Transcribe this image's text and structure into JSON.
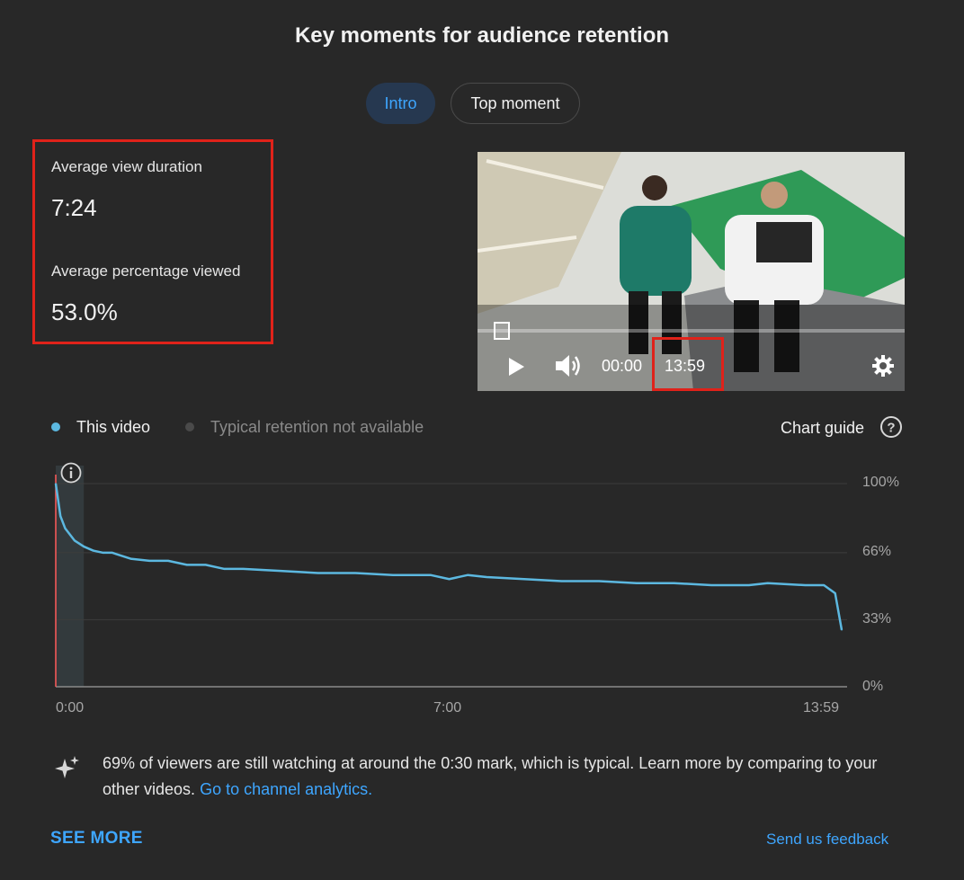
{
  "header": {
    "title": "Key moments for audience retention"
  },
  "tabs": [
    {
      "label": "Intro",
      "active": true
    },
    {
      "label": "Top moment",
      "active": false
    }
  ],
  "stats": {
    "avg_view_duration_label": "Average view duration",
    "avg_view_duration_value": "7:24",
    "avg_percentage_label": "Average percentage viewed",
    "avg_percentage_value": "53.0%"
  },
  "player": {
    "current_time": "00:00",
    "duration": "13:59",
    "progress": 0
  },
  "legend": {
    "this_video": "This video",
    "typical": "Typical retention not available",
    "chart_guide": "Chart guide"
  },
  "chart_data": {
    "type": "line",
    "title": "",
    "xlabel": "",
    "ylabel": "",
    "xlim_seconds": [
      0,
      839
    ],
    "x_tick_labels": [
      "0:00",
      "7:00",
      "13:59"
    ],
    "y_tick_labels": [
      "100%",
      "66%",
      "33%",
      "0%"
    ],
    "ylim": [
      0,
      100
    ],
    "grid": true,
    "highlight_range_seconds": [
      0,
      30
    ],
    "series": [
      {
        "name": "This video",
        "color": "#5cb8e0",
        "x_seconds": [
          0,
          5,
          10,
          20,
          30,
          40,
          50,
          60,
          80,
          100,
          120,
          140,
          160,
          180,
          200,
          240,
          280,
          320,
          360,
          400,
          420,
          440,
          460,
          500,
          540,
          580,
          620,
          660,
          700,
          740,
          760,
          800,
          820,
          832,
          839
        ],
        "values": [
          100,
          84,
          78,
          72,
          69,
          67,
          66,
          66,
          63,
          62,
          62,
          60,
          60,
          58,
          58,
          57,
          56,
          56,
          55,
          55,
          53,
          55,
          54,
          53,
          52,
          52,
          51,
          51,
          50,
          50,
          51,
          50,
          50,
          46,
          28
        ]
      }
    ],
    "colors": {
      "line": "#5cb8e0",
      "marker": "#ff5a5a",
      "grid": "#3d3d3d"
    }
  },
  "insight": {
    "text": "69% of viewers are still watching at around the 0:30 mark, which is typical. Learn more by comparing to your other videos. ",
    "link": "Go to channel analytics."
  },
  "footer": {
    "see_more": "SEE MORE",
    "feedback": "Send us feedback"
  },
  "icons": [
    "play-icon",
    "volume-icon",
    "settings-icon",
    "help-icon",
    "info-icon",
    "sparkle-icon"
  ]
}
